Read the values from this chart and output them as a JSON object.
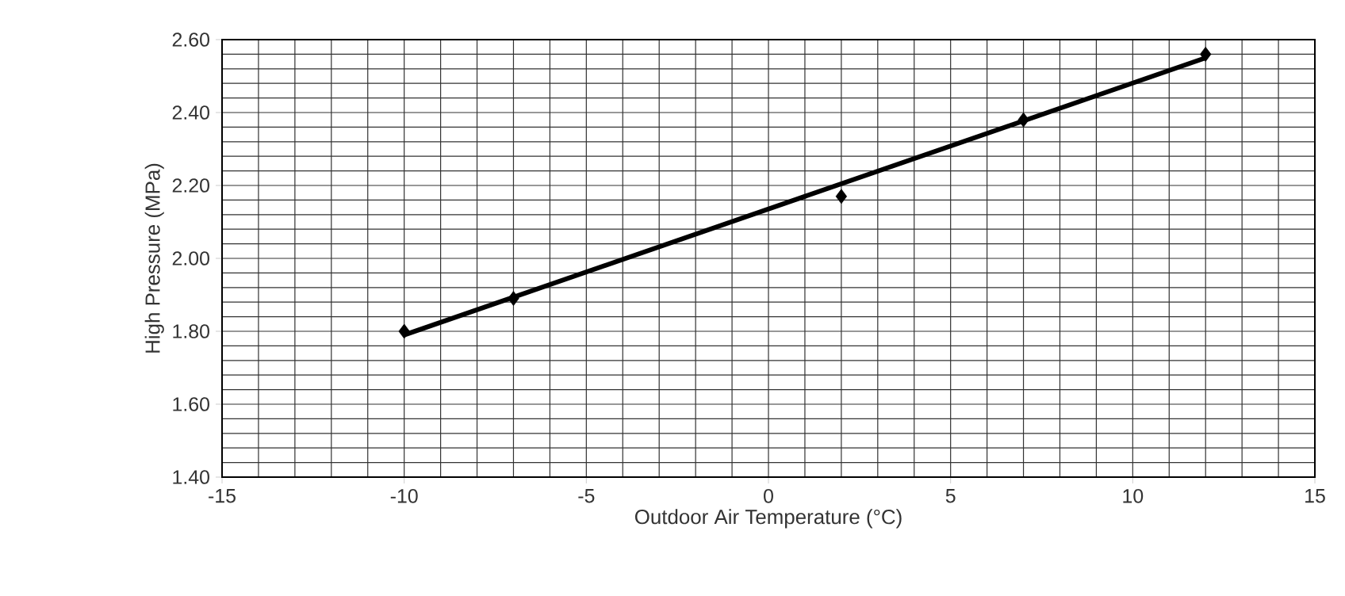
{
  "chart_data": {
    "type": "scatter",
    "xlabel": "Outdoor Air Temperature (°C)",
    "ylabel": "High Pressure (MPa)",
    "xlim": [
      -15,
      15
    ],
    "xticks": [
      -15,
      -10,
      -5,
      0,
      5,
      10,
      15
    ],
    "ylim": [
      1.4,
      2.6
    ],
    "yticks": [
      {
        "value": 1.4,
        "label": "1.40"
      },
      {
        "value": 1.6,
        "label": "1.60"
      },
      {
        "value": 1.8,
        "label": "1.80"
      },
      {
        "value": 2.0,
        "label": "2.00"
      },
      {
        "value": 2.2,
        "label": "2.20"
      },
      {
        "value": 2.4,
        "label": "2.40"
      },
      {
        "value": 2.6,
        "label": "2.60"
      }
    ],
    "grid": true,
    "series": [
      {
        "color": "#000000",
        "marker": "diamond",
        "x": [
          -10,
          -7,
          2,
          7,
          12
        ],
        "values": [
          1.8,
          1.89,
          2.17,
          2.38,
          2.56
        ]
      },
      {
        "type": "line",
        "color": "#000000",
        "marker": "none",
        "line_style": "solid",
        "x": [
          -10,
          12
        ],
        "values": [
          1.79,
          2.55
        ]
      }
    ]
  }
}
